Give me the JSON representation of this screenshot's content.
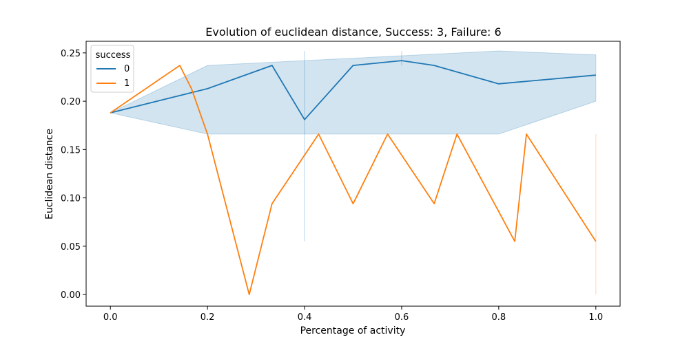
{
  "chart_data": {
    "type": "line",
    "title": "Evolution of euclidean distance, Success: 3, Failure: 6",
    "xlabel": "Percentage of activity",
    "ylabel": "Euclidean distance",
    "xlim": [
      -0.05,
      1.05
    ],
    "ylim": [
      -0.012,
      0.262
    ],
    "xticks": [
      0.0,
      0.2,
      0.4,
      0.6,
      0.8,
      1.0
    ],
    "xtick_labels": [
      "0.0",
      "0.2",
      "0.4",
      "0.6",
      "0.8",
      "1.0"
    ],
    "yticks": [
      0.0,
      0.05,
      0.1,
      0.15,
      0.2,
      0.25
    ],
    "ytick_labels": [
      "0.00",
      "0.05",
      "0.10",
      "0.15",
      "0.20",
      "0.25"
    ],
    "grid": false,
    "legend": {
      "title": "success",
      "placement": "top-left"
    },
    "series": [
      {
        "name": "0",
        "color": "#1f77b4",
        "x": [
          0.0,
          0.2,
          0.333,
          0.4,
          0.5,
          0.6,
          0.667,
          0.8,
          1.0
        ],
        "y": [
          0.188,
          0.213,
          0.237,
          0.181,
          0.237,
          0.242,
          0.237,
          0.218,
          0.227
        ],
        "band": {
          "x": [
            0.0,
            0.2,
            0.8,
            1.0
          ],
          "lower": [
            0.188,
            0.166,
            0.166,
            0.2
          ],
          "upper": [
            0.188,
            0.237,
            0.252,
            0.248
          ]
        },
        "errorbars": [
          {
            "x": 0.4,
            "lower": 0.055,
            "upper": 0.252
          },
          {
            "x": 0.6,
            "lower": 0.237,
            "upper": 0.252
          }
        ]
      },
      {
        "name": "1",
        "color": "#ff7f0e",
        "x": [
          0.0,
          0.143,
          0.167,
          0.2,
          0.286,
          0.333,
          0.429,
          0.5,
          0.571,
          0.667,
          0.714,
          0.833,
          0.857,
          1.0
        ],
        "y": [
          0.188,
          0.237,
          0.213,
          0.166,
          0.0,
          0.094,
          0.166,
          0.094,
          0.166,
          0.094,
          0.166,
          0.055,
          0.166,
          0.055
        ],
        "errorbars": [
          {
            "x": 1.0,
            "lower": 0.0,
            "upper": 0.166
          }
        ]
      }
    ]
  }
}
